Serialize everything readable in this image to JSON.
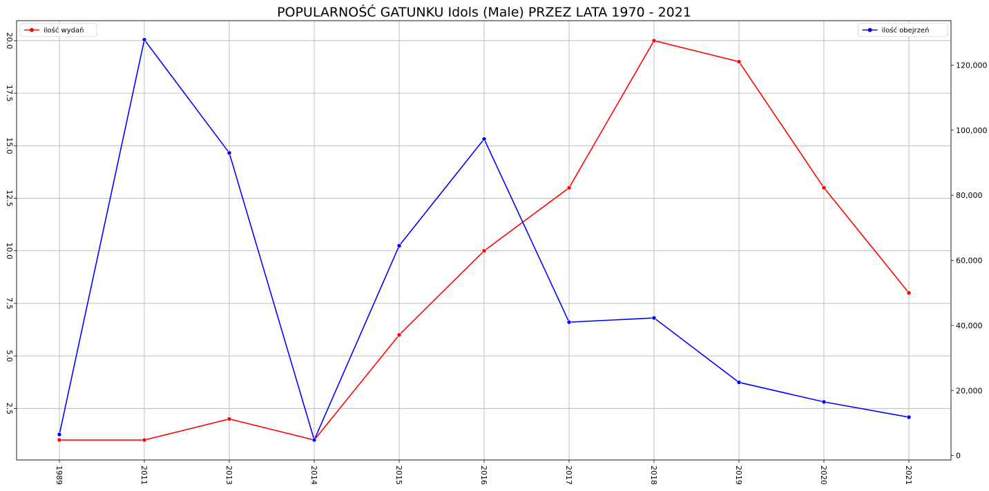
{
  "chart_data": {
    "type": "line",
    "title": "POPULARNOŚĆ GATUNKU Idols (Male) PRZEZ LATA 1970 - 2021",
    "categories": [
      "1989",
      "2011",
      "2013",
      "2014",
      "2015",
      "2016",
      "2017",
      "2018",
      "2019",
      "2020",
      "2021"
    ],
    "series": [
      {
        "name": "ilość wydań",
        "axis": "left",
        "color": "#ff0000",
        "values": [
          1,
          1,
          2,
          1,
          6,
          10,
          13,
          20,
          19,
          13,
          8
        ]
      },
      {
        "name": "ilość obejrzeń",
        "axis": "right",
        "color": "#0000ff",
        "values": [
          6500,
          127800,
          93000,
          4800,
          64500,
          97300,
          41000,
          42300,
          22500,
          16500,
          11800
        ]
      }
    ],
    "y_left": {
      "ticks": [
        "2.5",
        "5.0",
        "7.5",
        "10.0",
        "12.5",
        "15.0",
        "17.5",
        "20.0"
      ],
      "range": [
        0.05,
        20.95
      ],
      "tick_rotation": "vertical"
    },
    "y_right": {
      "ticks": [
        "0",
        "20,000",
        "40,000",
        "60,000",
        "80,000",
        "100,000",
        "120,000"
      ],
      "range": [
        -1350,
        133650
      ]
    },
    "x_tick_rotation": "vertical",
    "grid": true,
    "legend_left": "top-left",
    "legend_right": "top-right"
  }
}
